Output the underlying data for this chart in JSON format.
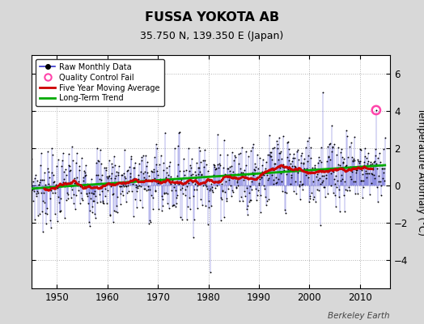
{
  "title": "FUSSA YOKOTA AB",
  "subtitle": "35.750 N, 139.350 E (Japan)",
  "ylabel": "Temperature Anomaly (°C)",
  "watermark": "Berkeley Earth",
  "ylim": [
    -5.5,
    7.0
  ],
  "yticks": [
    -4,
    -2,
    0,
    2,
    4,
    6
  ],
  "xticks": [
    1950,
    1960,
    1970,
    1980,
    1990,
    2000,
    2010
  ],
  "xlim": [
    1945,
    2016
  ],
  "bg_color": "#d8d8d8",
  "plot_bg_color": "#ffffff",
  "raw_line_color": "#3333cc",
  "raw_dot_color": "#000000",
  "qc_fail_color": "#ff44aa",
  "moving_avg_color": "#cc0000",
  "trend_color": "#00aa00",
  "legend_labels": [
    "Raw Monthly Data",
    "Quality Control Fail",
    "Five Year Moving Average",
    "Long-Term Trend"
  ]
}
